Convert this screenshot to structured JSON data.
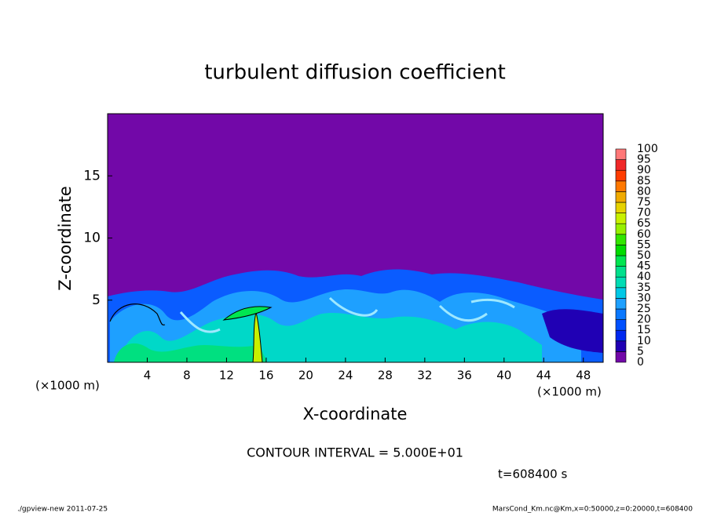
{
  "chart_data": {
    "type": "contour",
    "title": "turbulent diffusion coefficient",
    "x_label": "X-coordinate",
    "y_label": "Z-coordinate",
    "x_unit_labels": [
      "(×1000 m)",
      "(×1000 m)"
    ],
    "contour_note": "CONTOUR INTERVAL = 5.000E+01",
    "time_label": "t=608400 s",
    "footer_left": "./gpview-new   2011-07-25",
    "footer_right": "MarsCond_Km.nc@Km,x=0:50000,z=0:20000,t=608400",
    "xlim": [
      0,
      50
    ],
    "xticks": [
      4,
      8,
      12,
      16,
      20,
      24,
      28,
      32,
      36,
      40,
      44,
      48
    ],
    "ylim": [
      0,
      20
    ],
    "yticks": [
      5,
      10,
      15
    ],
    "colorbar": {
      "levels": [
        0,
        5,
        10,
        15,
        20,
        25,
        30,
        35,
        40,
        45,
        50,
        55,
        60,
        65,
        70,
        75,
        80,
        85,
        90,
        95,
        100
      ],
      "colors": [
        "#7208a8",
        "#2000b4",
        "#0028f0",
        "#0050ff",
        "#0a78ff",
        "#1ea0ff",
        "#00c8e6",
        "#00dcb4",
        "#00e08c",
        "#00e650",
        "#00dc00",
        "#32e600",
        "#96f000",
        "#c8f000",
        "#e6d200",
        "#f0aa00",
        "#ff7800",
        "#ff3c00",
        "#f02828",
        "#ff7878"
      ]
    }
  }
}
